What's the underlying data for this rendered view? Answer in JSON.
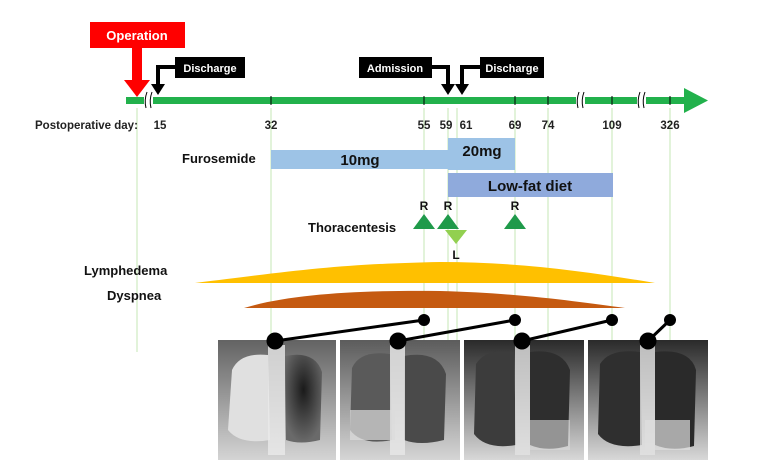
{
  "events": {
    "operation": "Operation",
    "discharge_first": "Discharge",
    "admission": "Admission",
    "discharge_second": "Discharge"
  },
  "axis": {
    "label": "Postoperative day:",
    "ticks": [
      "15",
      "32",
      "55",
      "59",
      "61",
      "69",
      "74",
      "109",
      "326"
    ]
  },
  "treatments": {
    "furosemide": {
      "label": "Furosemide",
      "dose_low": "10mg",
      "dose_high": "20mg"
    },
    "diet": "Low-fat diet",
    "thoracentesis": {
      "label": "Thoracentesis",
      "right_mark": "R",
      "left_mark": "L"
    }
  },
  "symptoms": {
    "lymphedema": "Lymphedema",
    "dyspnea": "Dyspnea"
  },
  "colors": {
    "timeline": "#22b14c",
    "operation": "#ff0000",
    "callout": "#000000",
    "furosemide": "#9dc3e6",
    "diet": "#8faadc",
    "thoracentesis_right": "#1f9a4a",
    "thoracentesis_left": "#92d050",
    "lymphedema": "#ffc000",
    "dyspnea": "#c55a11"
  },
  "xrays": {
    "count": 4,
    "description_icon": "chest-xray-image"
  }
}
